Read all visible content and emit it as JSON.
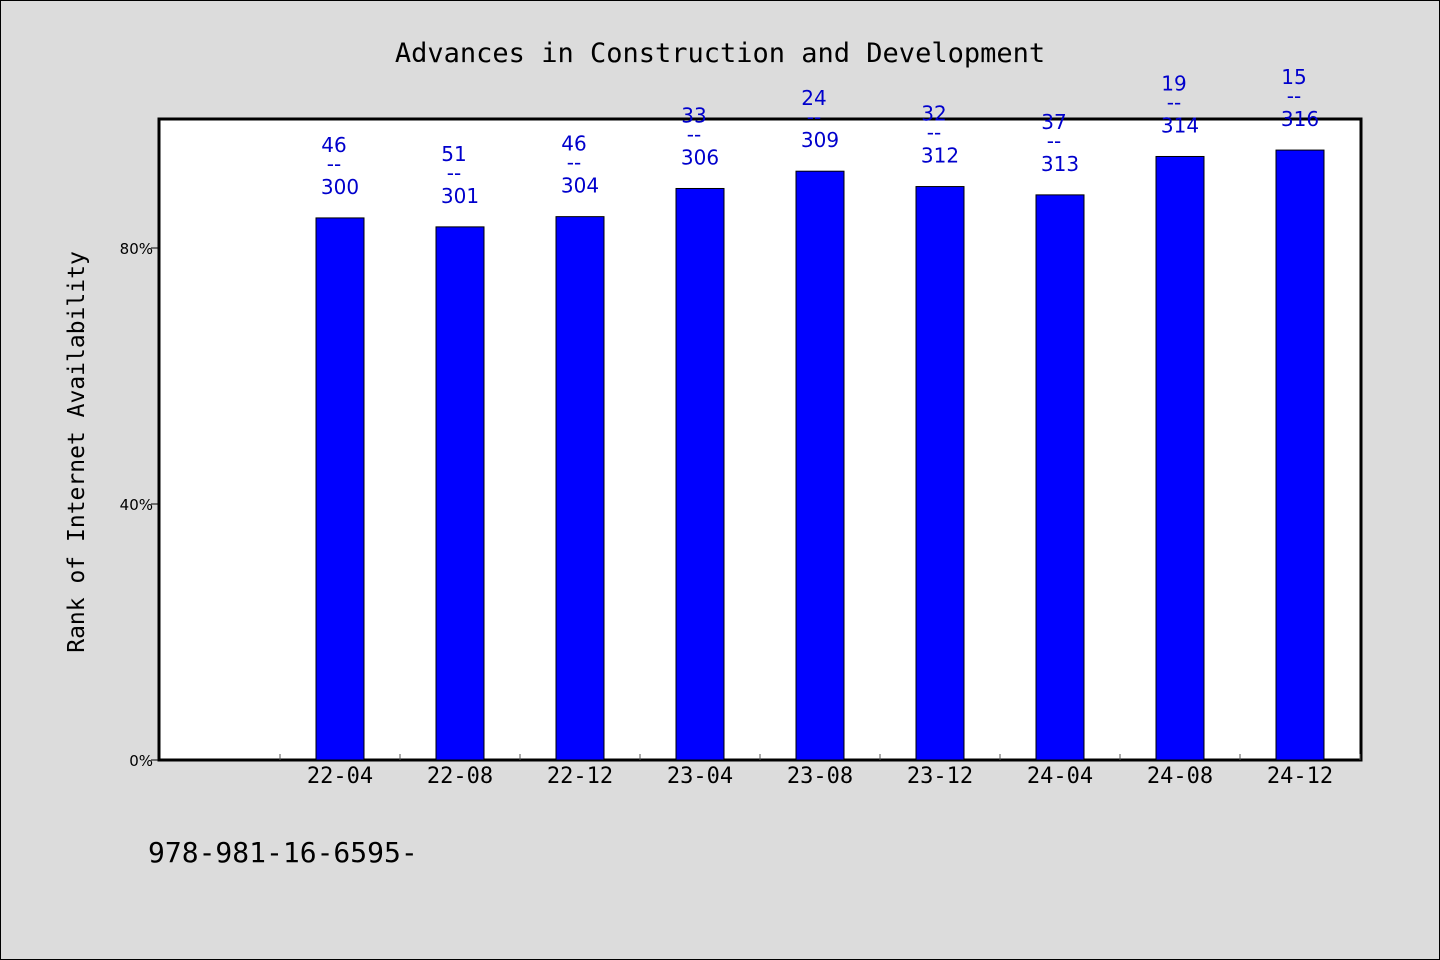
{
  "chart_data": {
    "type": "bar",
    "title": "Advances in Construction and Development",
    "xlabel": "",
    "ylabel": "Rank of Internet Availability",
    "categories": [
      "22-04",
      "22-08",
      "22-12",
      "23-04",
      "23-08",
      "23-12",
      "24-04",
      "24-08",
      "24-12"
    ],
    "values": [
      0.847,
      0.833,
      0.849,
      0.893,
      0.92,
      0.896,
      0.883,
      0.943,
      0.953
    ],
    "labels_top": [
      "46",
      "51",
      "46",
      "33",
      "24",
      "32",
      "37",
      "19",
      "15"
    ],
    "labels_sep": "--",
    "labels_bottom": [
      "300",
      "301",
      "304",
      "306",
      "309",
      "312",
      "313",
      "314",
      "316"
    ],
    "yticks": [
      0,
      0.4,
      0.8
    ],
    "ytick_labels": [
      "0%",
      "40%",
      "80%"
    ],
    "ylim": [
      0,
      1.0
    ],
    "grid": false,
    "bar_color": "#0000ff",
    "label_color": "#0000cc",
    "plot_background": "#ffffff",
    "page_background": "#dcdcdc"
  },
  "footer": {
    "text": "978-981-16-6595-"
  }
}
